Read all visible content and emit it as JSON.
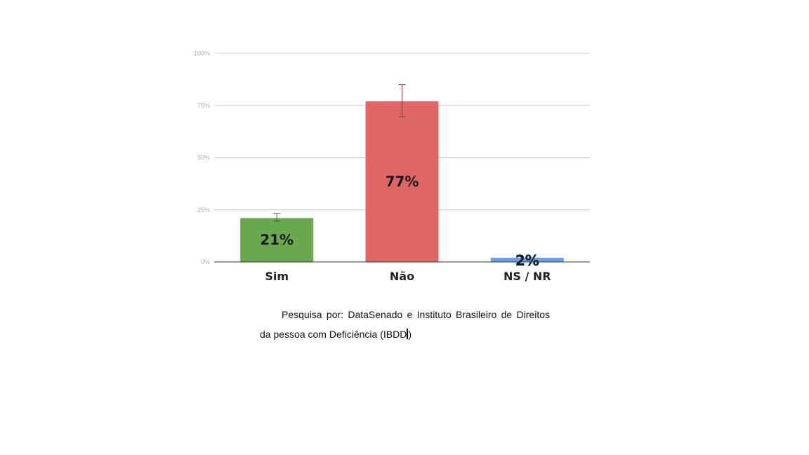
{
  "chart_data": {
    "type": "bar",
    "categories": [
      "Sim",
      "Não",
      "NS / NR"
    ],
    "values": [
      21,
      77,
      2
    ],
    "data_labels": [
      "21%",
      "77%",
      "2%"
    ],
    "colors": [
      "#6aa84f",
      "#e06666",
      "#6d9eeb"
    ],
    "error_bars": [
      [
        19.5,
        23.2
      ],
      [
        69.5,
        85
      ],
      [
        null,
        null
      ]
    ],
    "ylim": [
      0,
      100
    ],
    "y_ticks": [
      {
        "value": 0,
        "label": "0%"
      },
      {
        "value": 25,
        "label": "25%"
      },
      {
        "value": 50,
        "label": "50%"
      },
      {
        "value": 75,
        "label": "75%"
      },
      {
        "value": 100,
        "label": "100%"
      }
    ],
    "grid": true,
    "title": "",
    "xlabel": "",
    "ylabel": ""
  },
  "caption": {
    "text": "Pesquisa por: DataSenado e Instituto Brasileiro de Direitos da pessoa com Deficiência (IBDD"
  }
}
